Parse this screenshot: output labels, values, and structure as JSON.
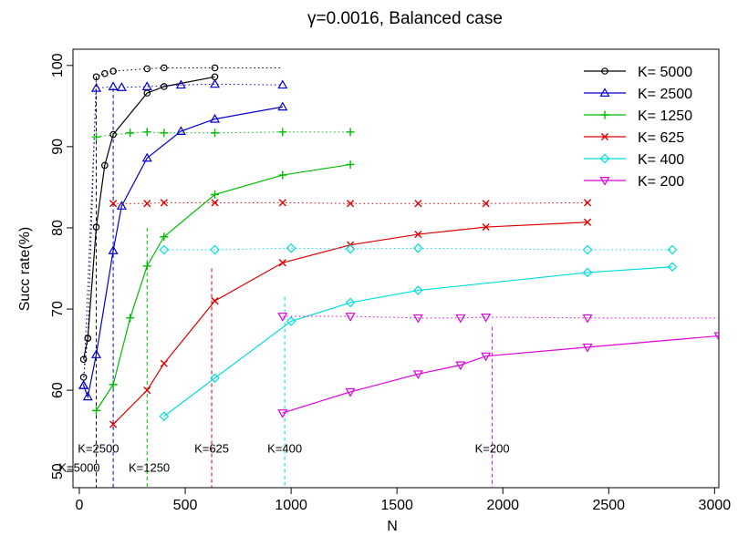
{
  "chart_data": {
    "type": "line",
    "title": "γ=0.0016, Balanced case",
    "xlabel": "N",
    "ylabel": "Succ rate(%)",
    "xlim": [
      -30,
      3020
    ],
    "ylim": [
      48,
      102
    ],
    "xticks": [
      0,
      500,
      1000,
      1500,
      2000,
      2500,
      3000
    ],
    "yticks": [
      50,
      60,
      70,
      80,
      90,
      100
    ],
    "legend_position": "top-right",
    "series": [
      {
        "name": "K= 5000",
        "color": "#000000",
        "marker": "circle",
        "x": [
          20,
          40,
          80,
          120,
          160,
          320,
          400,
          640
        ],
        "y": [
          63.8,
          66.4,
          80.1,
          87.7,
          91.5,
          96.6,
          97.4,
          98.6
        ],
        "upper_x": [
          20,
          40,
          80,
          120,
          160,
          320,
          400,
          640
        ],
        "upper_y": [
          61.6,
          66.4,
          98.6,
          99.0,
          99.3,
          99.6,
          99.7,
          99.7
        ],
        "upper_extend_to": 960,
        "threshold_x": 80,
        "threshold_y": 98.6,
        "threshold_label": "K=5000",
        "threshold_label_x": 0,
        "threshold_label_y": 50.5
      },
      {
        "name": "K= 2500",
        "color": "#0000cc",
        "marker": "triangle-up",
        "x": [
          20,
          40,
          80,
          160,
          200,
          320,
          480,
          640,
          960
        ],
        "y": [
          60.6,
          59.2,
          64.4,
          77.2,
          82.7,
          88.6,
          91.9,
          93.4,
          94.9
        ],
        "upper_x": [
          20,
          80,
          160,
          200,
          320,
          480,
          640,
          960
        ],
        "upper_y": [
          60.6,
          97.2,
          97.4,
          97.3,
          97.4,
          97.6,
          97.7,
          97.6
        ],
        "upper_extend_to": 960,
        "threshold_x": 160,
        "threshold_y": 97.2,
        "threshold_label": "K=2500",
        "threshold_label_x": 90,
        "threshold_label_y": 52.9
      },
      {
        "name": "K= 1250",
        "color": "#00bb00",
        "marker": "plus",
        "x": [
          80,
          160,
          240,
          320,
          400,
          640,
          960,
          1280
        ],
        "y": [
          57.5,
          60.7,
          68.9,
          75.3,
          78.9,
          84.1,
          86.5,
          87.8
        ],
        "upper_x": [
          80,
          240,
          320,
          400,
          640,
          960,
          1280
        ],
        "upper_y": [
          91.2,
          91.7,
          91.8,
          91.7,
          91.7,
          91.8,
          91.8
        ],
        "upper_extend_to": 1280,
        "threshold_x": 320,
        "threshold_y": 80,
        "threshold_label": "K=1250",
        "threshold_label_x": 330,
        "threshold_label_y": 50.5
      },
      {
        "name": "K= 625",
        "color": "#dd0000",
        "marker": "cross",
        "x": [
          160,
          320,
          400,
          640,
          960,
          1280,
          1600,
          1920,
          2400
        ],
        "y": [
          55.8,
          60.0,
          63.3,
          71.0,
          75.7,
          77.9,
          79.2,
          80.1,
          80.7
        ],
        "upper_x": [
          160,
          320,
          400,
          640,
          960,
          1280,
          1600,
          1920,
          2400
        ],
        "upper_y": [
          83.0,
          83.0,
          83.1,
          83.1,
          83.1,
          83.0,
          83.0,
          83.0,
          83.1
        ],
        "upper_extend_to": 2400,
        "threshold_x": 625,
        "threshold_y": 75,
        "threshold_label": "K=625",
        "threshold_label_x": 625,
        "threshold_label_y": 52.9
      },
      {
        "name": "K= 400",
        "color": "#00dddd",
        "marker": "diamond",
        "x": [
          400,
          640,
          1000,
          1280,
          1600,
          2400,
          2800
        ],
        "y": [
          56.8,
          61.5,
          68.5,
          70.8,
          72.3,
          74.5,
          75.2
        ],
        "upper_x": [
          400,
          640,
          1000,
          1280,
          1600,
          2400,
          2800
        ],
        "upper_y": [
          77.3,
          77.3,
          77.5,
          77.4,
          77.5,
          77.3,
          77.3
        ],
        "upper_extend_to": 2800,
        "threshold_x": 970,
        "threshold_y": 71.5,
        "threshold_label": "K=400",
        "threshold_label_x": 970,
        "threshold_label_y": 52.9
      },
      {
        "name": "K= 200",
        "color": "#dd00dd",
        "marker": "triangle-down",
        "x": [
          960,
          1280,
          1600,
          1800,
          1920,
          2400,
          3020
        ],
        "y": [
          57.2,
          59.8,
          62.0,
          63.1,
          64.2,
          65.3,
          66.7
        ],
        "upper_x": [
          960,
          1280,
          1600,
          1800,
          1920,
          2400
        ],
        "upper_y": [
          69.1,
          69.1,
          68.9,
          68.9,
          69.0,
          68.9
        ],
        "upper_extend_to": 3020,
        "threshold_x": 1950,
        "threshold_y": 67.8,
        "threshold_label": "K=200",
        "threshold_label_x": 1950,
        "threshold_label_y": 52.9
      }
    ]
  }
}
